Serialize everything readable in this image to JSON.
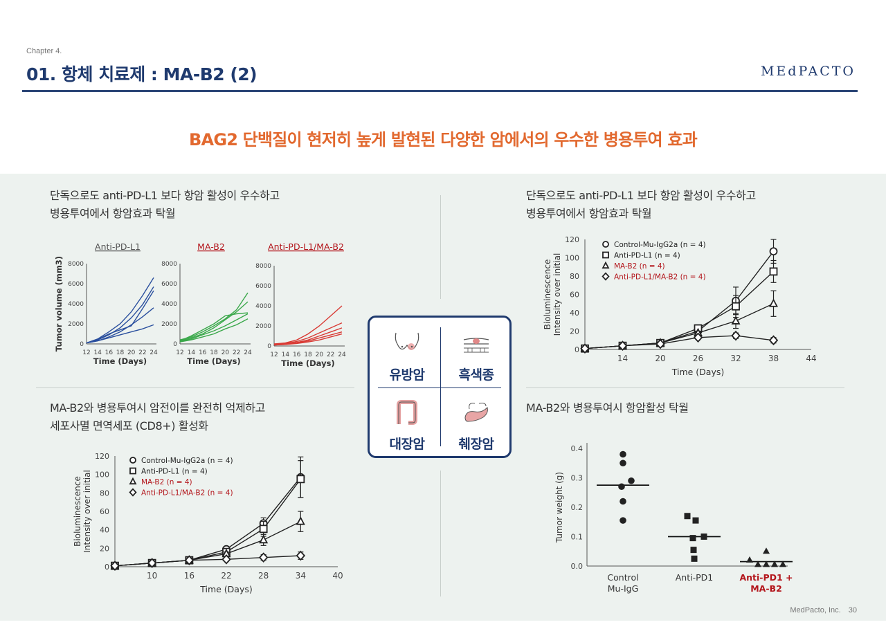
{
  "header": {
    "chapter": "Chapter 4.",
    "title": "01. 항체 치료제 : MA-B2 (2)",
    "logo": "MEdPACTO"
  },
  "headline": "BAG2 단백질이 현저히 높게 발현된 다양한 암에서의 우수한 병용투여 효과",
  "top_left": {
    "desc_line1": "단독으로도 anti-PD-L1 보다 항암 활성이 우수하고",
    "desc_line2": "병용투여에서 항암효과 탁월"
  },
  "top_right": {
    "desc_line1": "단독으로도 anti-PD-L1 보다 항암 활성이 우수하고",
    "desc_line2": "병용투여에서 항암효과 탁월"
  },
  "bottom_left": {
    "desc_line1": "MA-B2와 병용투여시 암전이를 완전히 억제하고",
    "desc_line2": "세포사멸 면역세포 (CD8+) 활성화"
  },
  "bottom_right": {
    "desc_line1": "MA-B2와 병용투여시 항암활성 탁월"
  },
  "cancers": [
    {
      "label": "유방암",
      "icon": "breast-icon"
    },
    {
      "label": "흑색종",
      "icon": "skin-icon"
    },
    {
      "label": "대장암",
      "icon": "colon-icon"
    },
    {
      "label": "췌장암",
      "icon": "pancreas-icon"
    }
  ],
  "footer": {
    "company": "MedPacto, Inc.",
    "page": "30"
  },
  "colors": {
    "navy": "#1f3a6e",
    "orange": "#e2692f",
    "blue": "#2a4f9e",
    "green": "#3aa84a",
    "red": "#d93b35",
    "dark_red": "#b3151b"
  },
  "chart_data": [
    {
      "type": "line",
      "title": "Anti-PD-L1",
      "xlabel": "Time (Days)",
      "ylabel": "Tumor volume (mm3)",
      "x": [
        12,
        14,
        16,
        18,
        20,
        22,
        24
      ],
      "xticks": [
        "12",
        "14",
        "16",
        "18",
        "20",
        "22",
        "24"
      ],
      "yticks": [
        "0",
        "2000",
        "4000",
        "6000",
        "8000"
      ],
      "ylim": [
        0,
        8000
      ],
      "color": "#2a4f9e",
      "series": [
        {
          "values": [
            100,
            500,
            1200,
            2000,
            3200,
            4800,
            6600
          ]
        },
        {
          "values": [
            100,
            400,
            900,
            1600,
            2600,
            3900,
            5700
          ]
        },
        {
          "values": [
            100,
            300,
            700,
            1200,
            1900,
            2700,
            3600
          ]
        },
        {
          "values": [
            100,
            300,
            600,
            900,
            1200,
            1500,
            1900
          ]
        },
        {
          "values": [
            100,
            450,
            1000,
            1400,
            1800,
            3500,
            5300
          ]
        }
      ]
    },
    {
      "type": "line",
      "title": "MA-B2",
      "xlabel": "Time (Days)",
      "x": [
        12,
        14,
        16,
        18,
        20,
        22,
        24
      ],
      "xticks": [
        "12",
        "14",
        "16",
        "18",
        "20",
        "22",
        "24"
      ],
      "yticks": [
        "0",
        "2000",
        "4000",
        "6000",
        "8000"
      ],
      "ylim": [
        0,
        8000
      ],
      "color": "#3aa84a",
      "series": [
        {
          "values": [
            400,
            700,
            1200,
            1800,
            2500,
            3400,
            5100
          ]
        },
        {
          "values": [
            300,
            600,
            1000,
            1600,
            2400,
            3200,
            4200
          ]
        },
        {
          "values": [
            250,
            500,
            900,
            1300,
            1800,
            2400,
            3000
          ]
        },
        {
          "values": [
            200,
            400,
            700,
            1000,
            1500,
            1900,
            2500
          ]
        },
        {
          "values": [
            300,
            800,
            1400,
            2000,
            2800,
            3000,
            3100
          ]
        }
      ]
    },
    {
      "type": "line",
      "title": "Anti-PD-L1/MA-B2",
      "xlabel": "Time (Days)",
      "x": [
        12,
        14,
        16,
        18,
        20,
        22,
        24
      ],
      "xticks": [
        "12",
        "14",
        "16",
        "18",
        "20",
        "22",
        "24"
      ],
      "yticks": [
        "0",
        "2000",
        "4000",
        "6000",
        "8000"
      ],
      "ylim": [
        0,
        8000
      ],
      "color": "#d93b35",
      "series": [
        {
          "values": [
            200,
            300,
            600,
            1200,
            2000,
            3000,
            4000
          ]
        },
        {
          "values": [
            200,
            250,
            450,
            800,
            1300,
            1800,
            2300
          ]
        },
        {
          "values": [
            150,
            200,
            350,
            600,
            1000,
            1400,
            1800
          ]
        },
        {
          "values": [
            100,
            150,
            300,
            500,
            800,
            1100,
            1400
          ]
        },
        {
          "values": [
            100,
            150,
            250,
            400,
            600,
            900,
            1200
          ]
        }
      ]
    },
    {
      "type": "line",
      "xlabel": "Time (Days)",
      "ylabel": "Bioluminescence Intensity over initial",
      "xlim": [
        8,
        44
      ],
      "ylim": [
        0,
        120
      ],
      "xticks": [
        "14",
        "20",
        "26",
        "32",
        "38",
        "44"
      ],
      "yticks": [
        "0",
        "20",
        "40",
        "60",
        "80",
        "100",
        "120"
      ],
      "series": [
        {
          "name": "Control-Mu-IgG2a  (n = 4)",
          "marker": "circle",
          "color": "#222222",
          "x": [
            8,
            14,
            20,
            26,
            32,
            38
          ],
          "values": [
            1,
            4,
            7,
            20,
            53,
            107
          ],
          "err": [
            0,
            0,
            0,
            3,
            15,
            13
          ]
        },
        {
          "name": "Anti-PD-L1  (n = 4)",
          "marker": "square",
          "color": "#222222",
          "x": [
            8,
            14,
            20,
            26,
            32,
            38
          ],
          "values": [
            1,
            4,
            7,
            23,
            47,
            85
          ],
          "err": [
            0,
            0,
            0,
            3,
            12,
            12
          ]
        },
        {
          "name": "MA-B2  (n = 4)",
          "marker": "triangle",
          "color": "#b3151b",
          "x": [
            8,
            14,
            20,
            26,
            32,
            38
          ],
          "values": [
            1,
            4,
            7,
            18,
            31,
            50
          ],
          "err": [
            0,
            0,
            0,
            2,
            8,
            14
          ]
        },
        {
          "name": "Anti-PD-L1/MA-B2  (n = 4)",
          "marker": "diamond",
          "color": "#b3151b",
          "x": [
            8,
            14,
            20,
            26,
            32,
            38
          ],
          "values": [
            1,
            4,
            6,
            13,
            15,
            10
          ],
          "err": [
            0,
            0,
            0,
            2,
            3,
            3
          ]
        }
      ]
    },
    {
      "type": "line",
      "xlabel": "Time (Days)",
      "ylabel": "Bioluminescence Intensity over initial",
      "xlim": [
        4,
        40
      ],
      "ylim": [
        0,
        120
      ],
      "xticks": [
        "10",
        "16",
        "22",
        "28",
        "34",
        "40"
      ],
      "yticks": [
        "0",
        "20",
        "40",
        "60",
        "80",
        "100",
        "120"
      ],
      "series": [
        {
          "name": "Control-Mu-IgG2a  (n = 4)",
          "marker": "circle",
          "color": "#222222",
          "x": [
            4,
            10,
            16,
            22,
            28,
            34
          ],
          "values": [
            1,
            4,
            7,
            19,
            47,
            97
          ],
          "err": [
            0,
            0,
            0,
            3,
            6,
            22
          ]
        },
        {
          "name": "Anti-PD-L1  (n = 4)",
          "marker": "square",
          "color": "#222222",
          "x": [
            4,
            10,
            16,
            22,
            28,
            34
          ],
          "values": [
            1,
            4,
            7,
            16,
            41,
            95
          ],
          "err": [
            0,
            0,
            0,
            3,
            8,
            20
          ]
        },
        {
          "name": "MA-B2  (n = 4)",
          "marker": "triangle",
          "color": "#b3151b",
          "x": [
            4,
            10,
            16,
            22,
            28,
            34
          ],
          "values": [
            1,
            4,
            7,
            14,
            29,
            49
          ],
          "err": [
            0,
            0,
            0,
            2,
            6,
            11
          ]
        },
        {
          "name": "Anti-PD-L1/MA-B2  (n = 4)",
          "marker": "diamond",
          "color": "#b3151b",
          "x": [
            4,
            10,
            16,
            22,
            28,
            34
          ],
          "values": [
            1,
            4,
            7,
            8,
            10,
            12
          ],
          "err": [
            0,
            0,
            0,
            2,
            3,
            4
          ]
        }
      ]
    },
    {
      "type": "scatter",
      "ylabel": "Tumor weight (g)",
      "ylim": [
        0,
        0.4
      ],
      "yticks": [
        "0.0",
        "0.1",
        "0.2",
        "0.3",
        "0.4"
      ],
      "categories": [
        "Control Mu-IgG",
        "Anti-PD1",
        "Anti-PD1 + MA-B2"
      ],
      "series": [
        {
          "category": "Control Mu-IgG",
          "marker": "circle",
          "color": "#222222",
          "values": [
            0.38,
            0.35,
            0.29,
            0.27,
            0.22,
            0.155
          ],
          "mean": 0.275
        },
        {
          "category": "Anti-PD1",
          "marker": "square",
          "color": "#222222",
          "values": [
            0.17,
            0.155,
            0.1,
            0.095,
            0.055,
            0.025
          ],
          "mean": 0.1
        },
        {
          "category": "Anti-PD1 + MA-B2",
          "marker": "triangle",
          "color": "#222222",
          "values": [
            0.05,
            0.02,
            0.005,
            0.005,
            0.005,
            0.005
          ],
          "mean": 0.015
        }
      ]
    }
  ]
}
